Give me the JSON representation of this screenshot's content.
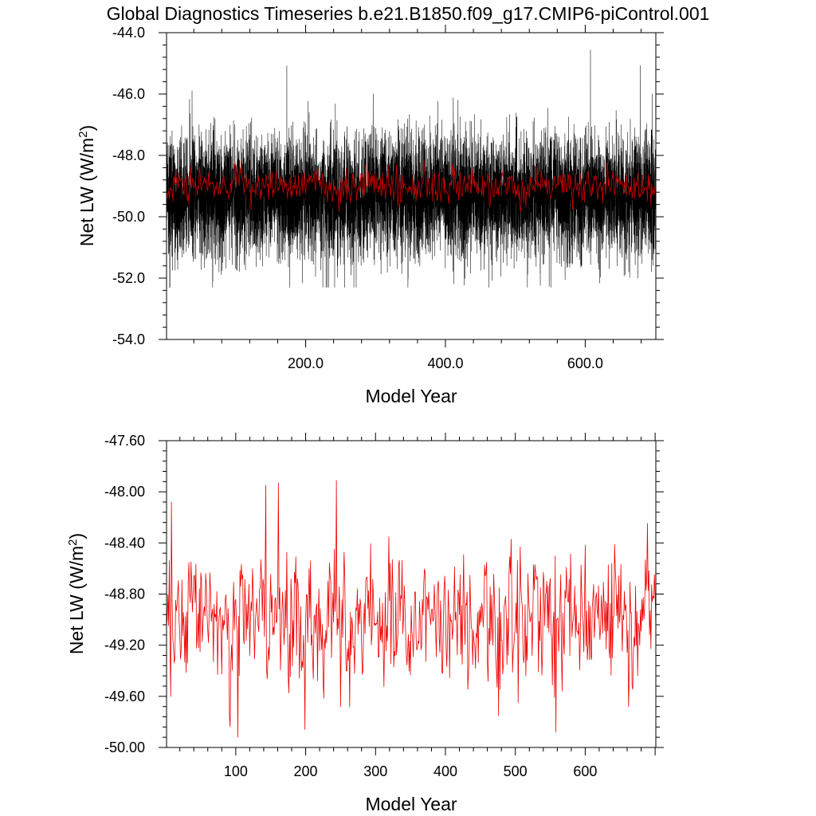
{
  "title": "Global Diagnostics Timeseries b.e21.B1850.f09_g17.CMIP6-piControl.001",
  "chart_data": [
    {
      "type": "line",
      "xlabel": "Model Year",
      "ylabel": "Net LW (W/m",
      "ylabel_sup": "2",
      "ylabel_close": ")",
      "xlim": [
        1,
        701
      ],
      "ylim": [
        -54.0,
        -44.0
      ],
      "x_ticks": [
        200,
        400,
        600
      ],
      "x_tick_labels": [
        "200.0",
        "400.0",
        "600.0"
      ],
      "y_ticks": [
        -44,
        -46,
        -48,
        -50,
        -52,
        -54
      ],
      "y_tick_labels": [
        "-44.0",
        "-46.0",
        "-48.0",
        "-50.0",
        "-52.0",
        "-54.0"
      ],
      "grid": false,
      "series": [
        {
          "color": "#000000",
          "sampling": "monthly",
          "mean": -49.3,
          "min": -52.3,
          "max": -44.1
        },
        {
          "color": "#cc0000",
          "sampling": "annual",
          "mean": -49.0,
          "min": -49.9,
          "max": -47.9
        }
      ]
    },
    {
      "type": "line",
      "xlabel": "Model Year",
      "ylabel": "Net LW (W/m",
      "ylabel_sup": "2",
      "ylabel_close": ")",
      "xlim": [
        1,
        701
      ],
      "ylim": [
        -50.0,
        -47.6
      ],
      "x_ticks": [
        100,
        200,
        300,
        400,
        500,
        600
      ],
      "x_tick_labels": [
        "100",
        "200",
        "300",
        "400",
        "500",
        "600"
      ],
      "y_ticks": [
        -47.6,
        -48.0,
        -48.4,
        -48.8,
        -49.2,
        -49.6,
        -50.0
      ],
      "y_tick_labels": [
        "-47.60",
        "-48.00",
        "-48.40",
        "-48.80",
        "-49.20",
        "-49.60",
        "-50.00"
      ],
      "grid": false,
      "series": [
        {
          "color": "#ee0000",
          "sampling": "annual",
          "mean": -49.0,
          "min": -49.92,
          "max": -47.91,
          "peaks": [
            [
              8,
              -48.08
            ],
            [
              103,
              -49.92
            ],
            [
              143,
              -47.95
            ],
            [
              161,
              -47.93
            ],
            [
              199,
              -49.86
            ],
            [
              244,
              -47.91
            ],
            [
              250,
              -49.68
            ],
            [
              476,
              -49.75
            ],
            [
              558,
              -49.88
            ],
            [
              662,
              -49.68
            ]
          ]
        }
      ]
    }
  ]
}
